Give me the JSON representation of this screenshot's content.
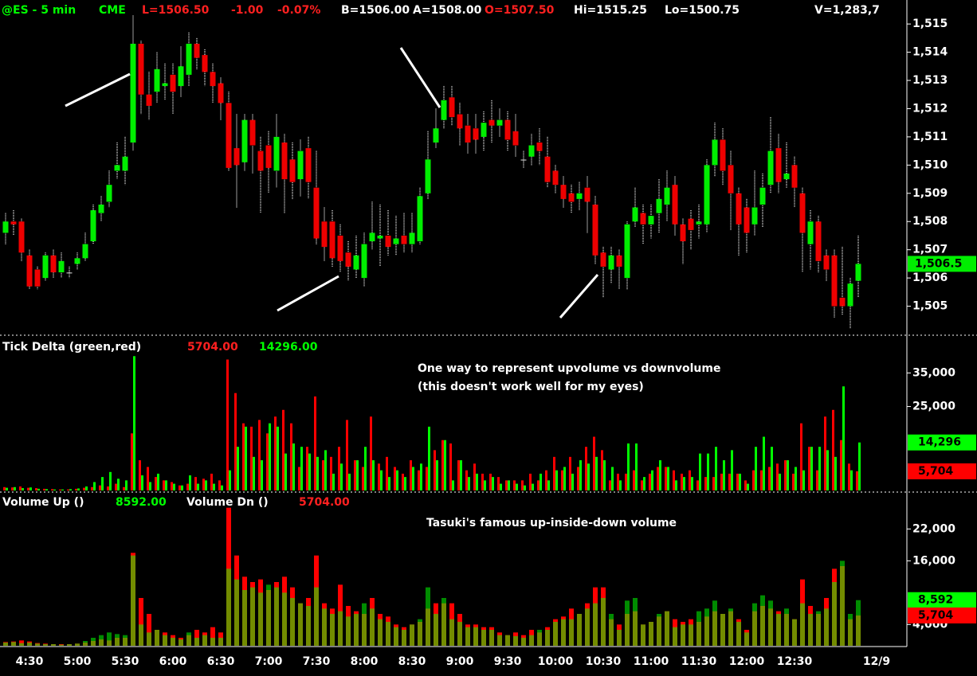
{
  "header": [
    {
      "text": "@ES - 5 min",
      "color": "#00ff00"
    },
    {
      "text": "CME",
      "color": "#00ff00"
    },
    {
      "text": "L=1506.50",
      "color": "#ff2020"
    },
    {
      "text": "-1.00",
      "color": "#ff2020"
    },
    {
      "text": "-0.07%",
      "color": "#ff2020"
    },
    {
      "text": "B=1506.00",
      "color": "#ffffff"
    },
    {
      "text": "A=1508.00",
      "color": "#ffffff"
    },
    {
      "text": "O=1507.50",
      "color": "#ff2020"
    },
    {
      "text": "Hi=1515.25",
      "color": "#ffffff"
    },
    {
      "text": "Lo=1500.75",
      "color": "#ffffff"
    },
    {
      "text": "V=1,283,7",
      "color": "#ffffff"
    }
  ],
  "chart_data": [
    {
      "type": "candlestick",
      "categories": [
        null,
        null,
        null,
        "4:30",
        null,
        null,
        null,
        null,
        null,
        "5:00",
        null,
        null,
        null,
        null,
        null,
        "5:30",
        null,
        null,
        null,
        null,
        null,
        "6:00",
        null,
        null,
        null,
        null,
        null,
        "6:30",
        null,
        null,
        null,
        null,
        null,
        "7:00",
        null,
        null,
        null,
        null,
        null,
        "7:30",
        null,
        null,
        null,
        null,
        null,
        "8:00",
        null,
        null,
        null,
        null,
        null,
        "8:30",
        null,
        null,
        null,
        null,
        null,
        "9:00",
        null,
        null,
        null,
        null,
        null,
        "9:30",
        null,
        null,
        null,
        null,
        null,
        "10:00",
        null,
        null,
        null,
        null,
        null,
        "10:30",
        null,
        null,
        null,
        null,
        null,
        "11:00",
        null,
        null,
        null,
        null,
        null,
        "11:30",
        null,
        null,
        null,
        null,
        null,
        "12:00",
        null,
        null,
        null,
        null,
        null,
        "12:30",
        null,
        null,
        null,
        null,
        null,
        null,
        null,
        null
      ],
      "date_label": "12/9",
      "open": [
        1507.6,
        1508.0,
        1508.0,
        1506.8,
        1506.3,
        1506.0,
        1506.8,
        1506.2,
        1506.2,
        1506.5,
        1506.7,
        1507.3,
        1508.3,
        1508.7,
        1509.8,
        1509.8,
        1510.8,
        1514.3,
        1512.5,
        1512.6,
        1512.8,
        1513.2,
        1512.8,
        1513.2,
        1514.3,
        1513.9,
        1513.3,
        1512.9,
        1512.2,
        1510.6,
        1510.1,
        1511.6,
        1510.5,
        1510.7,
        1509.8,
        1510.8,
        1510.2,
        1509.5,
        1510.6,
        1509.2,
        1508.0,
        1508.0,
        1507.5,
        1506.9,
        1506.3,
        1506.0,
        1507.3,
        1507.4,
        1507.5,
        1507.2,
        1507.5,
        1507.2,
        1507.3,
        1509.0,
        1510.8,
        1511.6,
        1512.4,
        1511.8,
        1511.4,
        1511.3,
        1511.0,
        1511.6,
        1511.4,
        1511.6,
        1511.2,
        1510.2,
        1510.3,
        1510.8,
        1510.3,
        1509.8,
        1509.3,
        1509.0,
        1508.8,
        1509.2,
        1508.6,
        1506.9,
        1506.3,
        1506.8,
        1506.0,
        1508.0,
        1508.3,
        1507.9,
        1508.3,
        1508.6,
        1509.3,
        1507.9,
        1508.1,
        1507.9,
        1507.9,
        1510.0,
        1510.9,
        1510.0,
        1509.0,
        1508.5,
        1507.9,
        1508.6,
        1509.3,
        1510.6,
        1509.5,
        1510.0,
        1509.0,
        1507.2,
        1508.0,
        1506.8,
        1506.8,
        1505.3,
        1505.0,
        1505.9
      ],
      "high": [
        1508.3,
        1508.4,
        1508.1,
        1507.0,
        1506.4,
        1506.9,
        1507.0,
        1506.9,
        1506.4,
        1506.9,
        1507.6,
        1508.6,
        1508.9,
        1509.8,
        1510.8,
        1511.0,
        1515.3,
        1514.4,
        1513.3,
        1514.0,
        1513.6,
        1513.6,
        1514.2,
        1514.7,
        1514.5,
        1514.1,
        1513.6,
        1513.1,
        1512.6,
        1511.8,
        1511.8,
        1511.8,
        1511.0,
        1511.2,
        1511.8,
        1511.1,
        1510.8,
        1510.9,
        1511.0,
        1510.5,
        1508.5,
        1508.4,
        1507.9,
        1507.3,
        1507.5,
        1507.6,
        1508.7,
        1508.6,
        1508.4,
        1508.2,
        1508.3,
        1508.3,
        1509.2,
        1511.2,
        1512.0,
        1512.8,
        1512.8,
        1512.2,
        1511.8,
        1511.8,
        1511.9,
        1512.3,
        1512.0,
        1511.9,
        1511.8,
        1510.5,
        1511.1,
        1511.3,
        1511.0,
        1510.0,
        1509.6,
        1509.3,
        1509.4,
        1509.6,
        1508.9,
        1507.1,
        1507.1,
        1507.0,
        1508.0,
        1509.2,
        1508.6,
        1508.6,
        1509.5,
        1509.8,
        1509.6,
        1508.1,
        1508.4,
        1508.6,
        1510.2,
        1511.5,
        1511.3,
        1510.5,
        1509.2,
        1508.8,
        1509.8,
        1509.7,
        1511.7,
        1511.1,
        1510.8,
        1510.3,
        1509.2,
        1508.4,
        1508.2,
        1507.0,
        1507.0,
        1507.1,
        1506.0,
        1507.5
      ],
      "low": [
        1507.2,
        1507.5,
        1506.6,
        1505.6,
        1505.6,
        1505.9,
        1506.0,
        1506.0,
        1506.0,
        1506.3,
        1506.6,
        1507.2,
        1508.0,
        1508.5,
        1509.5,
        1509.3,
        1510.5,
        1511.8,
        1511.6,
        1512.2,
        1512.3,
        1511.8,
        1512.4,
        1512.8,
        1513.4,
        1512.8,
        1512.2,
        1511.6,
        1509.8,
        1508.5,
        1509.8,
        1509.7,
        1508.3,
        1509.0,
        1509.2,
        1508.3,
        1508.8,
        1508.9,
        1508.8,
        1507.2,
        1506.6,
        1506.4,
        1506.2,
        1505.9,
        1506.0,
        1505.7,
        1507.0,
        1506.4,
        1506.8,
        1506.8,
        1506.9,
        1506.9,
        1507.2,
        1508.8,
        1510.6,
        1511.3,
        1511.4,
        1510.7,
        1510.4,
        1510.4,
        1510.5,
        1510.8,
        1511.0,
        1510.5,
        1510.3,
        1509.9,
        1510.0,
        1510.0,
        1509.2,
        1509.0,
        1508.5,
        1508.3,
        1508.4,
        1507.6,
        1506.5,
        1505.3,
        1505.8,
        1505.6,
        1505.6,
        1507.8,
        1507.2,
        1507.4,
        1507.6,
        1508.0,
        1507.5,
        1506.5,
        1507.0,
        1507.4,
        1507.6,
        1509.6,
        1509.3,
        1507.7,
        1506.8,
        1506.9,
        1507.5,
        1507.8,
        1509.0,
        1509.0,
        1509.2,
        1508.5,
        1506.2,
        1506.3,
        1506.2,
        1505.9,
        1504.6,
        1504.7,
        1504.2,
        1505.3
      ],
      "close": [
        1508.0,
        1507.9,
        1506.9,
        1505.7,
        1505.7,
        1506.8,
        1506.2,
        1506.6,
        1506.2,
        1506.7,
        1507.2,
        1508.4,
        1508.6,
        1509.3,
        1510.0,
        1510.3,
        1514.3,
        1512.5,
        1512.1,
        1513.4,
        1512.9,
        1512.6,
        1513.5,
        1514.3,
        1513.8,
        1513.3,
        1512.8,
        1512.2,
        1509.9,
        1510.0,
        1511.6,
        1510.7,
        1509.8,
        1509.9,
        1511.0,
        1509.5,
        1509.4,
        1510.5,
        1509.4,
        1507.4,
        1507.1,
        1506.7,
        1506.6,
        1506.4,
        1506.8,
        1507.2,
        1507.6,
        1507.5,
        1507.1,
        1507.4,
        1507.2,
        1507.6,
        1508.9,
        1510.2,
        1511.3,
        1512.3,
        1511.7,
        1511.3,
        1510.8,
        1510.9,
        1511.5,
        1511.4,
        1511.6,
        1510.9,
        1510.7,
        1510.2,
        1510.7,
        1510.5,
        1509.4,
        1509.3,
        1508.8,
        1508.7,
        1509.0,
        1508.7,
        1506.8,
        1506.4,
        1506.8,
        1506.4,
        1507.9,
        1508.5,
        1507.9,
        1508.2,
        1508.8,
        1509.2,
        1507.9,
        1507.3,
        1507.7,
        1508.0,
        1510.0,
        1510.9,
        1509.8,
        1509.0,
        1507.9,
        1507.6,
        1508.5,
        1509.2,
        1510.5,
        1509.4,
        1509.7,
        1509.2,
        1507.6,
        1508.0,
        1506.6,
        1506.3,
        1505.0,
        1505.0,
        1505.8,
        1506.5
      ],
      "up_color": "#00ee00",
      "down_color": "#ee0000",
      "wick_color": "#9a9a9a",
      "ylim": [
        1504,
        1515.85
      ],
      "yticks": [
        {
          "value": 1505,
          "label": "1,505"
        },
        {
          "value": 1506,
          "label": "1,506"
        },
        {
          "value": 1507,
          "label": "1,507"
        },
        {
          "value": 1508,
          "label": "1,508"
        },
        {
          "value": 1509,
          "label": "1,509"
        },
        {
          "value": 1510,
          "label": "1,510"
        },
        {
          "value": 1511,
          "label": "1,511"
        },
        {
          "value": 1512,
          "label": "1,512"
        },
        {
          "value": 1513,
          "label": "1,513"
        },
        {
          "value": 1514,
          "label": "1,514"
        },
        {
          "value": 1515,
          "label": "1,515"
        }
      ],
      "last": {
        "value": 1506.5,
        "label": "1,506.5"
      }
    },
    {
      "type": "bar",
      "mode": "side",
      "title": "Tick Delta (green,red)",
      "annotations": [
        "One way to represent upvolume vs downvolume",
        "(this doesn't work well for my eyes)"
      ],
      "series": [
        {
          "color": "#ff0000",
          "readout": "5704.00",
          "axis_label": "5,704",
          "values": [
            1000,
            900,
            1200,
            800,
            700,
            500,
            400,
            300,
            300,
            500,
            800,
            1000,
            1500,
            1200,
            2000,
            1000,
            17000,
            9000,
            7000,
            4000,
            3000,
            2500,
            1500,
            2000,
            4000,
            3500,
            5000,
            3000,
            39000,
            29000,
            20000,
            19000,
            21000,
            17000,
            22000,
            24000,
            20000,
            7000,
            13000,
            28000,
            9000,
            10000,
            13000,
            21000,
            9000,
            7000,
            22000,
            8000,
            10000,
            7000,
            5000,
            9000,
            6000,
            7000,
            12000,
            15000,
            14000,
            9000,
            6000,
            8000,
            5000,
            5000,
            4000,
            3000,
            3000,
            3000,
            5000,
            3000,
            6000,
            10000,
            6000,
            10000,
            7000,
            13000,
            16000,
            12000,
            3000,
            5000,
            5000,
            6000,
            3000,
            5000,
            7000,
            7000,
            6000,
            5000,
            6000,
            3000,
            4000,
            4000,
            5000,
            5000,
            5000,
            3000,
            6000,
            6000,
            7000,
            8000,
            9000,
            5000,
            20000,
            13000,
            6000,
            22000,
            24000,
            15000,
            8000,
            5704
          ]
        },
        {
          "color": "#00ff00",
          "readout": "14296.00",
          "axis_label": "14,296",
          "values": [
            800,
            1000,
            700,
            900,
            500,
            400,
            300,
            300,
            400,
            600,
            1200,
            2500,
            4000,
            5500,
            3500,
            3000,
            40000,
            4500,
            2500,
            5000,
            3000,
            2000,
            1500,
            4500,
            2000,
            3000,
            2000,
            1500,
            6000,
            13000,
            19000,
            10000,
            9000,
            20000,
            19000,
            11000,
            14000,
            13000,
            11000,
            10000,
            12000,
            5000,
            8000,
            5000,
            9000,
            13000,
            9000,
            6000,
            4000,
            6000,
            4000,
            7000,
            8000,
            19000,
            9000,
            15000,
            3000,
            9000,
            4000,
            5000,
            3000,
            4000,
            2000,
            3000,
            2000,
            1500,
            2000,
            5000,
            3000,
            6000,
            7000,
            5000,
            9000,
            8000,
            10000,
            9000,
            7000,
            3000,
            14000,
            14000,
            4000,
            6000,
            9000,
            7000,
            3000,
            4000,
            4000,
            11000,
            11000,
            13000,
            9000,
            12000,
            5000,
            2000,
            13000,
            16000,
            13000,
            5000,
            9000,
            7000,
            6000,
            13000,
            13000,
            12000,
            10000,
            31000,
            6000,
            14296
          ]
        }
      ],
      "ylim": [
        0,
        46000
      ],
      "yticks": [
        {
          "value": 25000,
          "label": "25,000"
        },
        {
          "value": 35000,
          "label": "35,000"
        }
      ]
    },
    {
      "type": "bar",
      "mode": "overlay",
      "annotations": [
        "Tasuki's famous up-inside-down volume"
      ],
      "series": [
        {
          "name": "Volume Up ()",
          "color": "#00ff00",
          "readout": "8592.00",
          "axis_label": "8,592",
          "values": [
            600,
            700,
            500,
            600,
            400,
            300,
            300,
            200,
            300,
            400,
            900,
            1500,
            2000,
            2500,
            2200,
            2000,
            17000,
            4000,
            2500,
            3000,
            2000,
            1500,
            1200,
            2500,
            1500,
            2000,
            1500,
            1500,
            14500,
            12500,
            10500,
            11000,
            10000,
            11500,
            11000,
            10000,
            9000,
            8000,
            7500,
            11000,
            7000,
            6000,
            6500,
            5500,
            6000,
            8000,
            7000,
            5000,
            4500,
            3500,
            3000,
            4000,
            5000,
            11000,
            6000,
            9000,
            5000,
            4500,
            3500,
            3500,
            3000,
            3000,
            2000,
            2000,
            1800,
            1500,
            2000,
            3000,
            3000,
            4500,
            5000,
            5000,
            6000,
            7000,
            8000,
            9000,
            6000,
            3000,
            8500,
            9000,
            4000,
            4500,
            6000,
            6500,
            3500,
            4000,
            4000,
            6500,
            7000,
            8500,
            6000,
            7000,
            4500,
            2500,
            8000,
            9500,
            8500,
            6000,
            7000,
            5000,
            8000,
            6000,
            6500,
            7000,
            12000,
            16000,
            6000,
            8592
          ]
        },
        {
          "name": "Volume Dn ()",
          "color": "#ff0000",
          "readout": "5704.00",
          "axis_label": "5,704",
          "values": [
            700,
            800,
            1000,
            800,
            500,
            400,
            300,
            300,
            300,
            400,
            600,
            900,
            1200,
            1000,
            1500,
            1500,
            17500,
            9000,
            6000,
            3000,
            2500,
            2000,
            1500,
            2000,
            3000,
            2500,
            3500,
            2500,
            26000,
            17000,
            13000,
            12000,
            12500,
            10500,
            12000,
            13000,
            11000,
            8000,
            9000,
            17000,
            8000,
            7000,
            11500,
            7500,
            6500,
            6000,
            9000,
            6000,
            5500,
            4000,
            3500,
            4000,
            4500,
            7000,
            8000,
            8000,
            8000,
            6000,
            4000,
            4000,
            3500,
            3500,
            2500,
            2000,
            2500,
            2000,
            3000,
            2500,
            3500,
            5000,
            5500,
            7000,
            6000,
            8000,
            11000,
            11000,
            5000,
            4000,
            6000,
            6500,
            4000,
            4500,
            5500,
            6500,
            5000,
            4500,
            5000,
            4500,
            5500,
            6500,
            6000,
            6500,
            5000,
            3000,
            6500,
            7500,
            7000,
            6500,
            6000,
            5000,
            12500,
            7500,
            6000,
            9000,
            14500,
            15000,
            5000,
            5704
          ]
        }
      ],
      "ylim": [
        0,
        28800
      ],
      "yticks": [
        {
          "value": 4000,
          "label": "4,000"
        },
        {
          "value": 16000,
          "label": "16,000"
        },
        {
          "value": 22000,
          "label": "22,000"
        }
      ]
    }
  ]
}
